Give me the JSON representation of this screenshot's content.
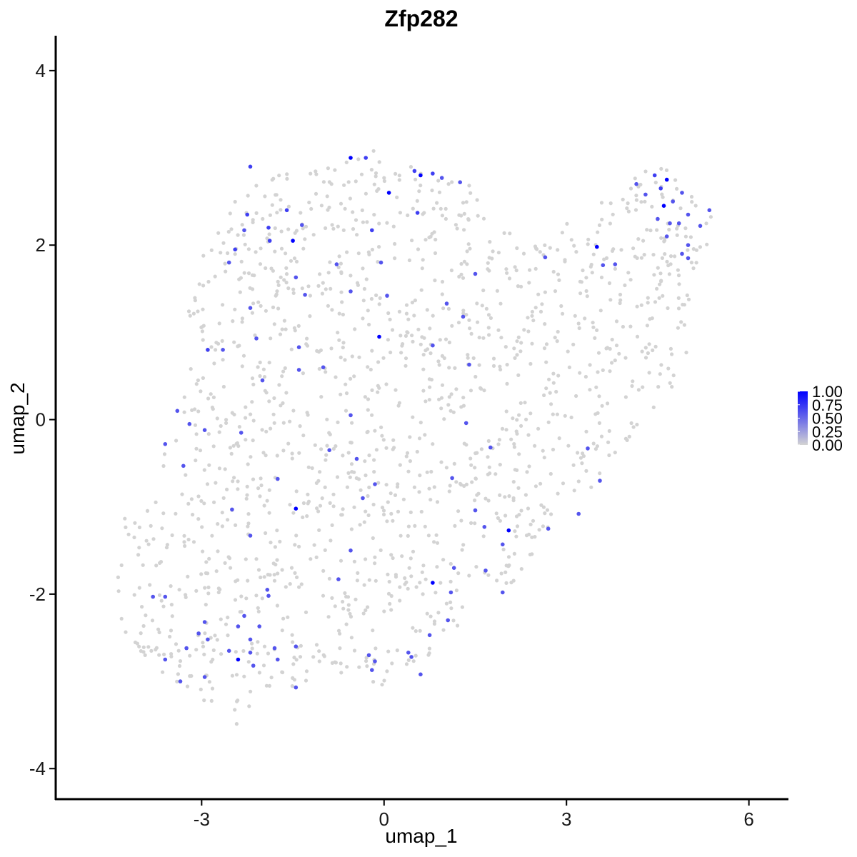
{
  "chart_data": {
    "type": "scatter",
    "title": "Zfp282",
    "xlabel": "umap_1",
    "ylabel": "umap_2",
    "xlim": [
      -5.4,
      6.65
    ],
    "ylim": [
      -4.35,
      4.4
    ],
    "xticks": [
      -3,
      0,
      3,
      6
    ],
    "yticks": [
      -4,
      -2,
      0,
      2,
      4
    ],
    "xtick_labels": [
      "-3",
      "0",
      "3",
      "6"
    ],
    "ytick_labels": [
      "-4",
      "-2",
      "0",
      "2",
      "4"
    ],
    "color_low": "#d3d3d3",
    "color_high": "#0000ff",
    "legend": {
      "position": "right",
      "type": "colorbar",
      "range": [
        0,
        1
      ],
      "breaks": [
        0,
        0.25,
        0.5,
        0.75,
        1
      ],
      "labels": [
        "0.00",
        "0.25",
        "0.50",
        "0.75",
        "1.00"
      ]
    },
    "background_cells": {
      "count": 1500,
      "expression": 0,
      "outline": [
        [
          -4.75,
          -1.15
        ],
        [
          -3.95,
          -1.1
        ],
        [
          -3.45,
          -0.05
        ],
        [
          -3.3,
          0.5
        ],
        [
          -3.2,
          1.6
        ],
        [
          -2.95,
          2.05
        ],
        [
          -2.25,
          2.7
        ],
        [
          -1.6,
          2.85
        ],
        [
          -1.0,
          3.0
        ],
        [
          0.0,
          3.1
        ],
        [
          0.6,
          2.9
        ],
        [
          1.4,
          2.7
        ],
        [
          1.8,
          2.35
        ],
        [
          2.4,
          2.0
        ],
        [
          3.0,
          2.35
        ],
        [
          3.6,
          2.6
        ],
        [
          4.1,
          2.75
        ],
        [
          4.45,
          3.05
        ],
        [
          4.8,
          2.75
        ],
        [
          5.35,
          2.45
        ],
        [
          5.5,
          1.95
        ],
        [
          5.1,
          1.6
        ],
        [
          5.0,
          0.8
        ],
        [
          4.8,
          0.35
        ],
        [
          4.2,
          -0.1
        ],
        [
          3.7,
          -0.5
        ],
        [
          3.45,
          -0.9
        ],
        [
          2.9,
          -1.15
        ],
        [
          2.5,
          -1.45
        ],
        [
          2.35,
          -1.8
        ],
        [
          1.6,
          -2.05
        ],
        [
          1.1,
          -2.45
        ],
        [
          0.8,
          -2.8
        ],
        [
          0.5,
          -2.95
        ],
        [
          0.0,
          -3.05
        ],
        [
          -0.5,
          -2.95
        ],
        [
          -1.3,
          -3.0
        ],
        [
          -1.9,
          -3.2
        ],
        [
          -2.4,
          -3.5
        ],
        [
          -3.0,
          -3.2
        ],
        [
          -3.5,
          -3.05
        ],
        [
          -3.85,
          -2.8
        ],
        [
          -4.3,
          -2.45
        ],
        [
          -4.45,
          -2.05
        ],
        [
          -4.35,
          -1.5
        ]
      ]
    },
    "points": [
      {
        "x": -0.55,
        "y": 3.0,
        "value": 1.0
      },
      {
        "x": 0.6,
        "y": 2.8,
        "value": 1.0
      },
      {
        "x": 0.08,
        "y": 2.6,
        "value": 1.0
      },
      {
        "x": 4.65,
        "y": 2.75,
        "value": 1.0
      },
      {
        "x": 4.6,
        "y": 2.45,
        "value": 1.0
      },
      {
        "x": -1.5,
        "y": 2.05,
        "value": 1.0
      },
      {
        "x": 3.5,
        "y": 1.98,
        "value": 1.0
      },
      {
        "x": -0.08,
        "y": 0.95,
        "value": 1.0
      },
      {
        "x": -1.45,
        "y": -1.02,
        "value": 1.0
      },
      {
        "x": 2.05,
        "y": -1.27,
        "value": 1.0
      },
      {
        "x": 0.8,
        "y": -1.87,
        "value": 1.0
      },
      {
        "x": -2.4,
        "y": -2.75,
        "value": 1.0
      },
      {
        "x": -2.2,
        "y": 2.9,
        "value": 0.7
      },
      {
        "x": -0.3,
        "y": 3.0,
        "value": 0.7
      },
      {
        "x": 0.5,
        "y": 2.85,
        "value": 0.7
      },
      {
        "x": 0.8,
        "y": 2.82,
        "value": 0.7
      },
      {
        "x": 0.95,
        "y": 2.77,
        "value": 0.6
      },
      {
        "x": 1.25,
        "y": 2.72,
        "value": 0.6
      },
      {
        "x": 0.55,
        "y": 2.37,
        "value": 0.7
      },
      {
        "x": -1.6,
        "y": 2.4,
        "value": 0.7
      },
      {
        "x": -2.25,
        "y": 2.35,
        "value": 0.7
      },
      {
        "x": -1.35,
        "y": 2.23,
        "value": 0.6
      },
      {
        "x": -1.9,
        "y": 2.2,
        "value": 0.7
      },
      {
        "x": -2.3,
        "y": 2.17,
        "value": 0.6
      },
      {
        "x": -0.2,
        "y": 2.17,
        "value": 0.7
      },
      {
        "x": -1.88,
        "y": 2.05,
        "value": 0.7
      },
      {
        "x": -2.45,
        "y": 1.95,
        "value": 0.7
      },
      {
        "x": -2.55,
        "y": 1.8,
        "value": 0.6
      },
      {
        "x": -0.78,
        "y": 1.78,
        "value": 0.6
      },
      {
        "x": -0.05,
        "y": 1.8,
        "value": 0.6
      },
      {
        "x": -1.45,
        "y": 1.63,
        "value": 0.6
      },
      {
        "x": 1.5,
        "y": 1.67,
        "value": 0.6
      },
      {
        "x": 2.65,
        "y": 1.86,
        "value": 0.6
      },
      {
        "x": -0.55,
        "y": 1.47,
        "value": 0.6
      },
      {
        "x": 0.05,
        "y": 1.42,
        "value": 0.6
      },
      {
        "x": -2.2,
        "y": 1.28,
        "value": 0.6
      },
      {
        "x": -1.3,
        "y": 1.43,
        "value": 0.6
      },
      {
        "x": 1.03,
        "y": 1.33,
        "value": 0.6
      },
      {
        "x": 1.3,
        "y": 1.18,
        "value": 0.6
      },
      {
        "x": -2.1,
        "y": 0.93,
        "value": 0.6
      },
      {
        "x": -2.9,
        "y": 0.8,
        "value": 0.7
      },
      {
        "x": -2.65,
        "y": 0.8,
        "value": 0.6
      },
      {
        "x": -1.4,
        "y": 0.83,
        "value": 0.6
      },
      {
        "x": 0.8,
        "y": 0.85,
        "value": 0.6
      },
      {
        "x": 1.4,
        "y": 0.63,
        "value": 0.6
      },
      {
        "x": -1.4,
        "y": 0.57,
        "value": 0.6
      },
      {
        "x": -1.0,
        "y": 0.6,
        "value": 0.6
      },
      {
        "x": -2.0,
        "y": 0.45,
        "value": 0.6
      },
      {
        "x": 3.6,
        "y": 1.77,
        "value": 0.6
      },
      {
        "x": 3.8,
        "y": 1.78,
        "value": 0.6
      },
      {
        "x": 4.15,
        "y": 2.7,
        "value": 0.6
      },
      {
        "x": 4.3,
        "y": 2.58,
        "value": 0.6
      },
      {
        "x": 4.45,
        "y": 2.8,
        "value": 0.7
      },
      {
        "x": 4.55,
        "y": 2.65,
        "value": 0.7
      },
      {
        "x": 4.9,
        "y": 2.6,
        "value": 0.6
      },
      {
        "x": 4.75,
        "y": 2.5,
        "value": 0.6
      },
      {
        "x": 5.0,
        "y": 2.35,
        "value": 0.6
      },
      {
        "x": 4.5,
        "y": 2.3,
        "value": 0.6
      },
      {
        "x": 4.7,
        "y": 2.25,
        "value": 0.6
      },
      {
        "x": 5.2,
        "y": 2.22,
        "value": 0.6
      },
      {
        "x": 4.85,
        "y": 2.25,
        "value": 0.6
      },
      {
        "x": 4.65,
        "y": 2.1,
        "value": 0.6
      },
      {
        "x": 5.0,
        "y": 2.0,
        "value": 0.6
      },
      {
        "x": 4.9,
        "y": 1.9,
        "value": 0.6
      },
      {
        "x": 5.0,
        "y": 1.85,
        "value": 0.6
      },
      {
        "x": 5.35,
        "y": 2.4,
        "value": 0.6
      },
      {
        "x": -3.4,
        "y": 0.1,
        "value": 0.6
      },
      {
        "x": -3.2,
        "y": -0.05,
        "value": 0.6
      },
      {
        "x": -2.95,
        "y": -0.12,
        "value": 0.6
      },
      {
        "x": -2.35,
        "y": -0.15,
        "value": 0.6
      },
      {
        "x": -3.6,
        "y": -0.28,
        "value": 0.6
      },
      {
        "x": -3.3,
        "y": -0.53,
        "value": 0.6
      },
      {
        "x": -0.55,
        "y": 0.05,
        "value": 0.6
      },
      {
        "x": 1.35,
        "y": -0.04,
        "value": 0.6
      },
      {
        "x": -0.9,
        "y": -0.35,
        "value": 0.6
      },
      {
        "x": -0.45,
        "y": -0.45,
        "value": 0.6
      },
      {
        "x": 1.75,
        "y": -0.32,
        "value": 0.6
      },
      {
        "x": 3.35,
        "y": -0.33,
        "value": 0.6
      },
      {
        "x": 3.55,
        "y": -0.7,
        "value": 0.6
      },
      {
        "x": 1.12,
        "y": -0.67,
        "value": 0.6
      },
      {
        "x": -1.75,
        "y": -0.68,
        "value": 0.6
      },
      {
        "x": -0.15,
        "y": -0.74,
        "value": 0.6
      },
      {
        "x": -0.35,
        "y": -0.9,
        "value": 0.6
      },
      {
        "x": 1.5,
        "y": -1.04,
        "value": 0.6
      },
      {
        "x": -2.5,
        "y": -1.03,
        "value": 0.6
      },
      {
        "x": 3.2,
        "y": -1.08,
        "value": 0.6
      },
      {
        "x": 1.65,
        "y": -1.23,
        "value": 0.6
      },
      {
        "x": 2.7,
        "y": -1.25,
        "value": 0.6
      },
      {
        "x": -2.2,
        "y": -1.33,
        "value": 0.6
      },
      {
        "x": 1.95,
        "y": -1.43,
        "value": 0.6
      },
      {
        "x": -0.55,
        "y": -1.5,
        "value": 0.6
      },
      {
        "x": -0.75,
        "y": -1.83,
        "value": 0.6
      },
      {
        "x": 1.15,
        "y": -1.7,
        "value": 0.6
      },
      {
        "x": 1.67,
        "y": -1.73,
        "value": 0.6
      },
      {
        "x": 1.1,
        "y": -1.98,
        "value": 0.6
      },
      {
        "x": 1.95,
        "y": -1.98,
        "value": 0.6
      },
      {
        "x": -3.8,
        "y": -2.03,
        "value": 0.6
      },
      {
        "x": -3.6,
        "y": -2.03,
        "value": 0.6
      },
      {
        "x": -1.92,
        "y": -1.95,
        "value": 0.6
      },
      {
        "x": -1.9,
        "y": -2.02,
        "value": 0.6
      },
      {
        "x": -2.3,
        "y": -2.25,
        "value": 0.6
      },
      {
        "x": 1.05,
        "y": -2.3,
        "value": 0.6
      },
      {
        "x": -2.95,
        "y": -2.32,
        "value": 0.6
      },
      {
        "x": -2.4,
        "y": -2.37,
        "value": 0.6
      },
      {
        "x": -2.05,
        "y": -2.37,
        "value": 0.6
      },
      {
        "x": -3.05,
        "y": -2.45,
        "value": 0.6
      },
      {
        "x": -2.2,
        "y": -2.52,
        "value": 0.6
      },
      {
        "x": -2.9,
        "y": -2.52,
        "value": 0.6
      },
      {
        "x": 0.75,
        "y": -2.47,
        "value": 0.6
      },
      {
        "x": -3.25,
        "y": -2.62,
        "value": 0.6
      },
      {
        "x": -1.8,
        "y": -2.62,
        "value": 0.6
      },
      {
        "x": -1.45,
        "y": -2.6,
        "value": 0.6
      },
      {
        "x": -2.55,
        "y": -2.65,
        "value": 0.6
      },
      {
        "x": -2.2,
        "y": -2.67,
        "value": 0.6
      },
      {
        "x": 0.4,
        "y": -2.67,
        "value": 0.6
      },
      {
        "x": -1.75,
        "y": -2.75,
        "value": 0.6
      },
      {
        "x": -0.25,
        "y": -2.7,
        "value": 0.6
      },
      {
        "x": -3.6,
        "y": -2.75,
        "value": 0.6
      },
      {
        "x": -0.15,
        "y": -2.77,
        "value": 0.6
      },
      {
        "x": 0.45,
        "y": -2.72,
        "value": 0.6
      },
      {
        "x": -2.15,
        "y": -2.82,
        "value": 0.6
      },
      {
        "x": -0.2,
        "y": -2.87,
        "value": 0.6
      },
      {
        "x": 0.6,
        "y": -2.92,
        "value": 0.6
      },
      {
        "x": -2.95,
        "y": -2.95,
        "value": 0.6
      },
      {
        "x": -3.35,
        "y": -3.0,
        "value": 0.6
      },
      {
        "x": -1.45,
        "y": -3.07,
        "value": 0.6
      }
    ]
  }
}
